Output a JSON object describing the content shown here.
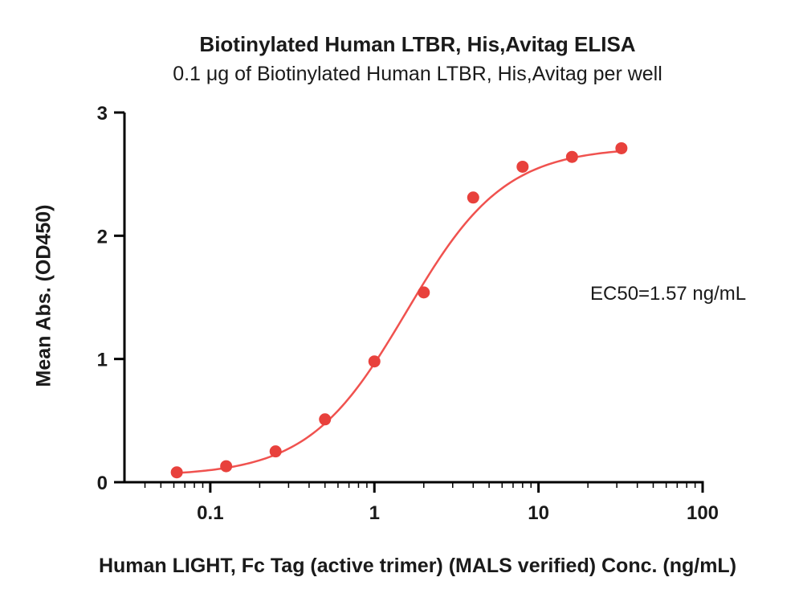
{
  "chart_data": {
    "type": "scatter",
    "title": "Biotinylated Human LTBR, His,Avitag ELISA",
    "subtitle": "0.1 μg of Biotinylated Human LTBR, His,Avitag per well",
    "xlabel": "Human LIGHT, Fc Tag (active trimer) (MALS verified) Conc. (ng/mL)",
    "ylabel": "Mean Abs. (OD450)",
    "annotation": "EC50=1.57 ng/mL",
    "x_scale": "log10",
    "xlim": [
      0.03,
      100
    ],
    "ylim": [
      0,
      3
    ],
    "x_major_ticks": [
      0.1,
      1,
      10,
      100
    ],
    "x_major_labels": [
      "0.1",
      "1",
      "10",
      "100"
    ],
    "y_ticks": [
      0,
      1,
      2,
      3
    ],
    "y_tick_labels": [
      "0",
      "1",
      "2",
      "3"
    ],
    "grid": false,
    "legend": "none",
    "points": {
      "x": [
        0.0625,
        0.125,
        0.25,
        0.5,
        1,
        2,
        4,
        8,
        16,
        32
      ],
      "y": [
        0.08,
        0.13,
        0.25,
        0.51,
        0.98,
        1.54,
        2.31,
        2.56,
        2.64,
        2.71
      ]
    },
    "fit": {
      "model": "4PL",
      "bottom": 0.05,
      "top": 2.72,
      "ec50": 1.57,
      "hill": 1.45
    },
    "point_color": "#E8413C",
    "line_color": "#F0524F",
    "axis_color": "#000000"
  }
}
